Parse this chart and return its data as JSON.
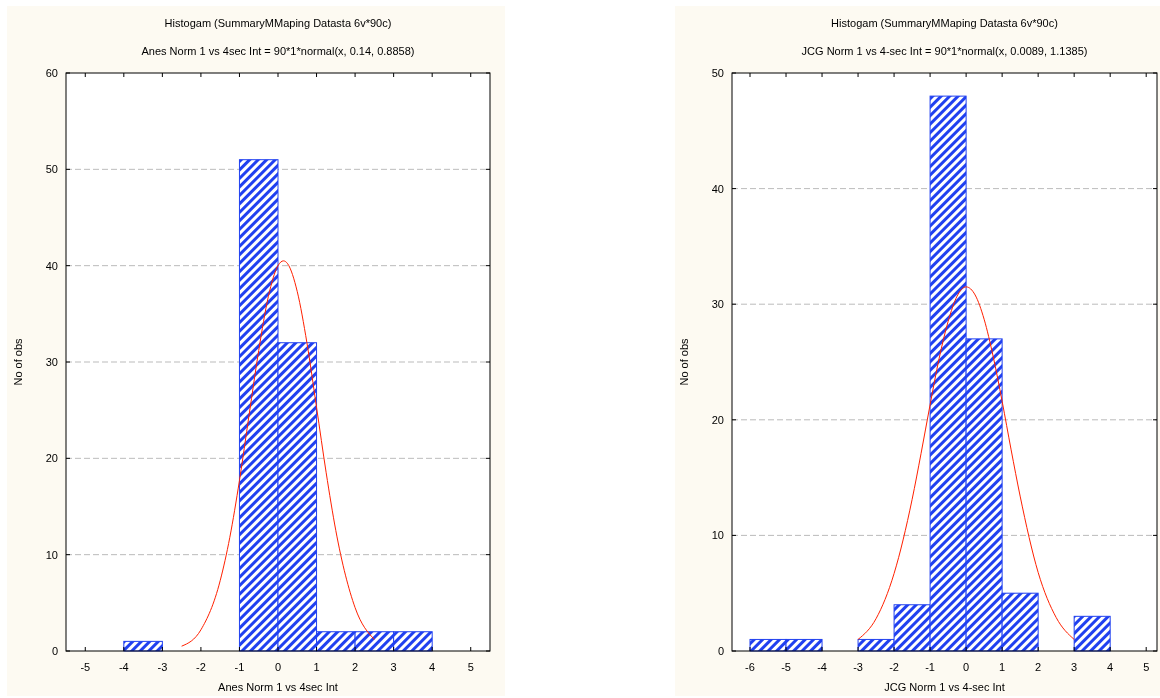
{
  "chart_data": [
    {
      "type": "histogram",
      "title": "Histogam (SummaryMMaping Datasta 6v*90c)",
      "subtitle": "Anes Norm 1 vs 4sec Int =  90*1*normal(x, 0.14, 0.8858)",
      "xlabel": "Anes Norm 1 vs 4sec Int",
      "ylabel": "No of obs",
      "xlim": [
        -5.5,
        5.5
      ],
      "xticks": [
        -5,
        -4,
        -3,
        -2,
        -1,
        0,
        1,
        2,
        3,
        4,
        5
      ],
      "ylim": [
        0,
        60
      ],
      "yticks": [
        0,
        10,
        20,
        30,
        40,
        50,
        60
      ],
      "grid": "y",
      "series": [
        {
          "color": "#2040f0",
          "bins": [
            -4,
            -3,
            -2,
            -1,
            0,
            1,
            2,
            3,
            4
          ],
          "values": [
            1,
            0,
            0,
            51,
            32,
            2,
            2,
            2
          ]
        },
        {
          "type": "line",
          "color": "#ff2000",
          "x": [
            -2.5,
            -2,
            -1.5,
            -1.25,
            -1,
            -0.75,
            -0.5,
            -0.25,
            0,
            0.14,
            0.25,
            0.5,
            0.75,
            1,
            1.25,
            1.5,
            2,
            2.5
          ],
          "values": [
            0.5,
            2.2,
            7.3,
            11.8,
            17.7,
            24.5,
            31.2,
            36.8,
            40,
            40.5,
            40.2,
            37.3,
            32,
            25.3,
            18.5,
            12.5,
            4.5,
            1.2
          ]
        }
      ]
    },
    {
      "type": "histogram",
      "title": "Histogam (SummaryMMaping Datasta 6v*90c)",
      "subtitle": "JCG Norm 1 vs 4-sec Int = 90*1*normal(x, 0.0089, 1.1385)",
      "xlabel": "JCG Norm 1 vs 4-sec Int",
      "ylabel": "No of obs",
      "xlim": [
        -6.5,
        5.3
      ],
      "xticks": [
        -6,
        -5,
        -4,
        -3,
        -2,
        -1,
        0,
        1,
        2,
        3,
        4,
        5
      ],
      "ylim": [
        0,
        50
      ],
      "yticks": [
        0,
        10,
        20,
        30,
        40,
        50
      ],
      "grid": "y",
      "series": [
        {
          "color": "#2040f0",
          "bins": [
            -6,
            -5,
            -4,
            -3,
            -2,
            -1,
            0,
            1,
            2,
            3,
            4
          ],
          "values": [
            1,
            1,
            0,
            1,
            4,
            48,
            27,
            5,
            0,
            3
          ]
        },
        {
          "type": "line",
          "color": "#ff2000",
          "x": [
            -3,
            -2.5,
            -2,
            -1.5,
            -1.25,
            -1,
            -0.75,
            -0.5,
            -0.25,
            0,
            0.25,
            0.5,
            0.75,
            1,
            1.25,
            1.5,
            2,
            2.5,
            3
          ],
          "values": [
            1,
            2.8,
            6.7,
            13.1,
            17.1,
            21.3,
            25.3,
            28.5,
            30.7,
            31.5,
            30.8,
            28.7,
            25.5,
            21.6,
            17.4,
            13.4,
            6.8,
            2.9,
            1
          ]
        }
      ]
    }
  ]
}
